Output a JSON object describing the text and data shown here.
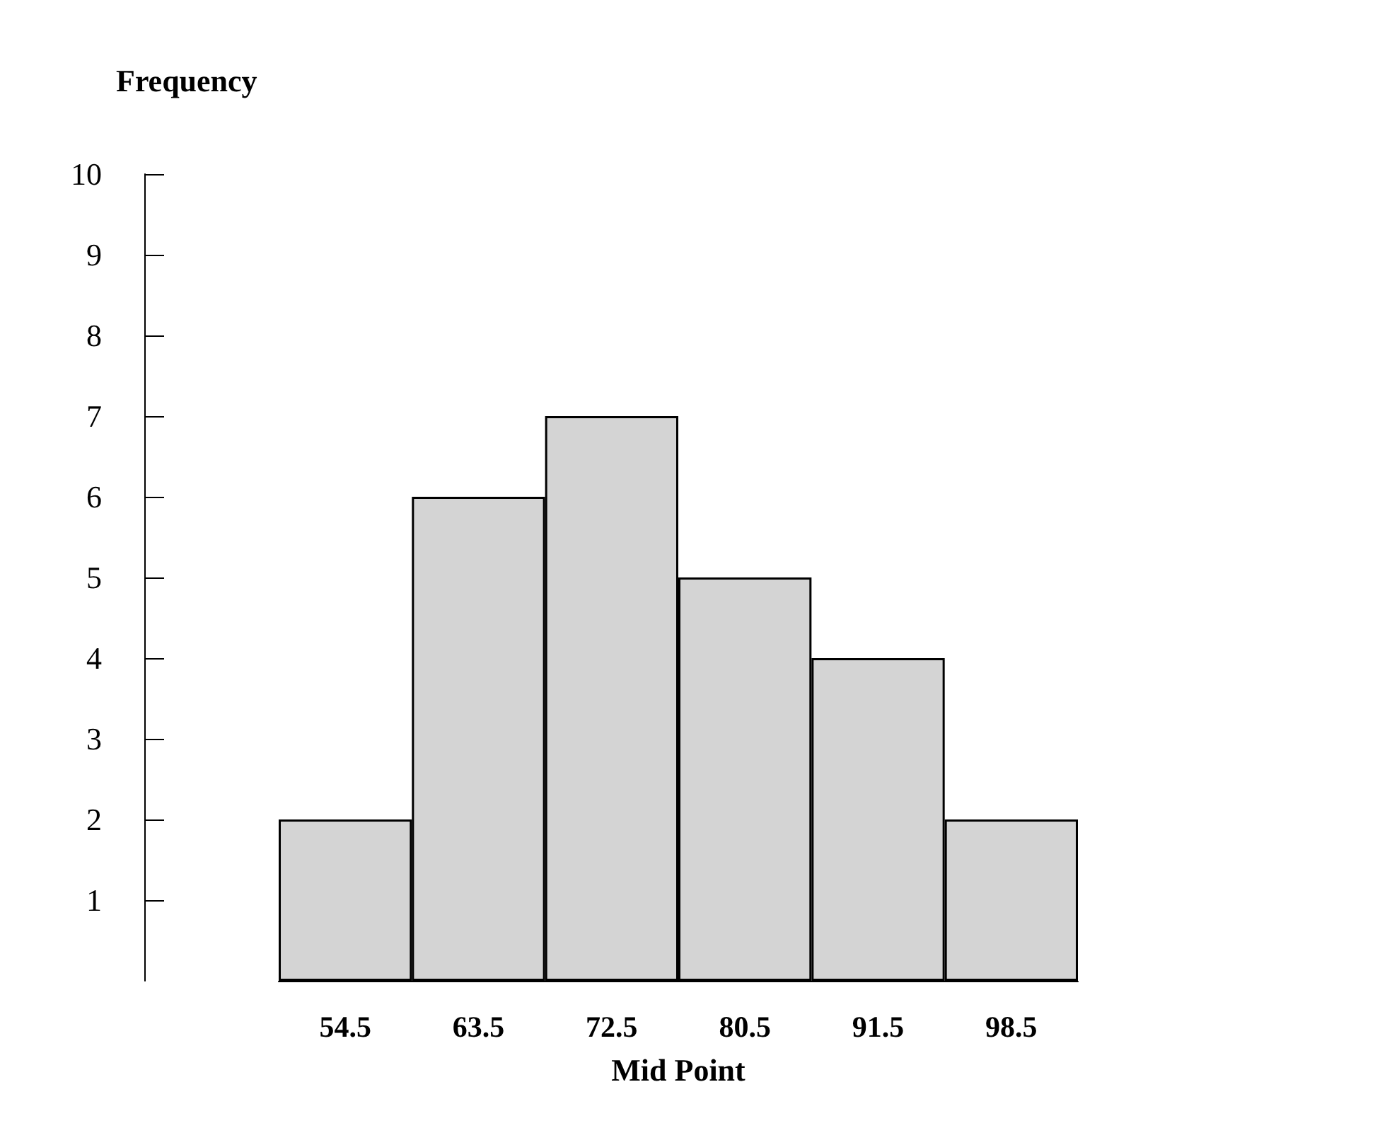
{
  "chart_data": {
    "type": "bar",
    "xlabel": "Mid Point",
    "ylabel": "Frequency",
    "categories": [
      "54.5",
      "63.5",
      "72.5",
      "80.5",
      "91.5",
      "98.5"
    ],
    "values": [
      2,
      6,
      7,
      5,
      4,
      2
    ],
    "color": "#d4d4d4",
    "ylim": [
      0,
      10
    ],
    "yticks": [
      1,
      2,
      3,
      4,
      5,
      6,
      7,
      8,
      9,
      10
    ],
    "grid": false
  }
}
